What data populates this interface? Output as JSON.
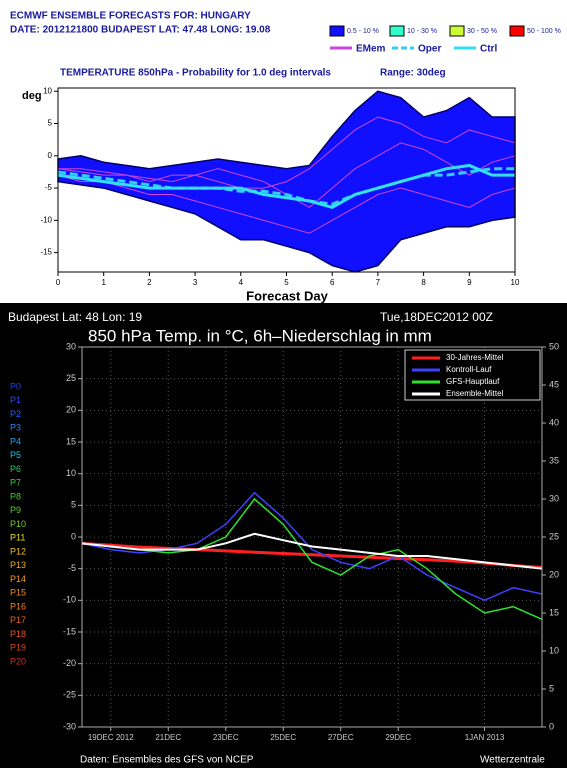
{
  "chart_data": [
    {
      "type": "line",
      "title": "ECMWF ENSEMBLE FORECASTS FOR:  HUNGARY",
      "subtitle": "DATE: 2012121800  BUDAPEST  LAT: 47.48  LONG: 19.08",
      "heading": "TEMPERATURE 850hPa - Probability for 1.0 deg intervals",
      "range_label": "Range: 30deg",
      "y_label": "deg",
      "x_label": "Forecast Day",
      "x": [
        0,
        0.5,
        1,
        1.5,
        2,
        2.5,
        3,
        3.5,
        4,
        4.5,
        5,
        5.5,
        6,
        6.5,
        7,
        7.5,
        8,
        8.5,
        9,
        9.5,
        10
      ],
      "xlim": [
        0,
        10
      ],
      "xticks": [
        0,
        1,
        2,
        3,
        4,
        5,
        6,
        7,
        8,
        9,
        10
      ],
      "ylim": [
        -18,
        10.5
      ],
      "yticks": [
        -15,
        -10,
        -5,
        0,
        5,
        10
      ],
      "probability_classes": [
        {
          "name": "0.5 - 10 %",
          "color": "#1010ff",
          "high": [
            -0.5,
            0,
            -1,
            -1.5,
            -2,
            -1.5,
            -1,
            -0.5,
            -1,
            -1.5,
            -2,
            -1.5,
            3,
            7,
            10,
            9,
            6,
            7,
            9,
            6,
            6
          ],
          "low": [
            -4,
            -4.5,
            -5,
            -6,
            -7,
            -8,
            -9,
            -11,
            -13,
            -13,
            -14,
            -15,
            -17,
            -18,
            -17,
            -13,
            -12,
            -11,
            -11,
            -10,
            -9.5
          ]
        },
        {
          "name": "10 - 30 %",
          "color": "#33ffcc"
        },
        {
          "name": "30 - 50 %",
          "color": "#ccff33"
        },
        {
          "name": "50 - 100 %",
          "color": "#ff0000"
        }
      ],
      "series": [
        {
          "name": "EMem",
          "color": "#cc44dd",
          "members": [
            [
              -2,
              -2.5,
              -3,
              -3,
              -3.5,
              -4,
              -3,
              -2,
              -3,
              -4,
              -6,
              -8,
              -5,
              -2,
              0,
              2,
              1,
              -1,
              -3,
              -1,
              0
            ],
            [
              -3,
              -4,
              -4,
              -5,
              -6,
              -6,
              -7,
              -8,
              -9,
              -10,
              -11,
              -12,
              -10,
              -8,
              -6,
              -5,
              -6,
              -7,
              -8,
              -6,
              -5
            ],
            [
              -2,
              -2,
              -2.5,
              -3,
              -4,
              -3,
              -3,
              -4,
              -5,
              -5,
              -4,
              -2,
              1,
              4,
              6,
              5,
              3,
              2,
              4,
              3,
              2
            ]
          ]
        },
        {
          "name": "Oper",
          "color": "#33ccff",
          "dashed": true,
          "values": [
            -2.5,
            -3,
            -3.5,
            -4,
            -4.5,
            -5,
            -5,
            -5,
            -5.5,
            -5.5,
            -6,
            -7,
            -7.5,
            -6,
            -5,
            -4,
            -3,
            -3,
            -2.5,
            -2,
            -2
          ]
        },
        {
          "name": "Ctrl",
          "color": "#33e0f0",
          "values": [
            -3,
            -3.5,
            -4,
            -4.5,
            -5,
            -5,
            -5,
            -5,
            -5,
            -6,
            -6.5,
            -7,
            -8,
            -6,
            -5,
            -4,
            -3,
            -2,
            -1.5,
            -3,
            -3
          ]
        }
      ]
    },
    {
      "type": "line",
      "title": "850 hPa Temp. in °C, 6h–Niederschlag in mm",
      "location": "Budapest   Lat: 48 Lon: 19",
      "run": "Tue,18DEC2012 00Z",
      "source": "Daten: Ensembles des GFS von NCEP",
      "credit": "Wetterzentrale",
      "grid": true,
      "x": [
        0,
        24,
        48,
        72,
        96,
        120,
        144,
        168,
        192,
        216,
        240,
        264,
        288,
        312,
        336,
        360,
        384
      ],
      "xlim": [
        0,
        384
      ],
      "xticks": [
        {
          "value": 24,
          "label": "19DEC 2012"
        },
        {
          "value": 72,
          "label": "21DEC"
        },
        {
          "value": 120,
          "label": "23DEC"
        },
        {
          "value": 168,
          "label": "25DEC"
        },
        {
          "value": 216,
          "label": "27DEC"
        },
        {
          "value": 264,
          "label": "29DEC"
        },
        {
          "value": 336,
          "label": "1JAN 2013"
        }
      ],
      "ylim": [
        -30,
        30
      ],
      "yticks": [
        -30,
        -25,
        -20,
        -15,
        -10,
        -5,
        0,
        5,
        10,
        15,
        20,
        25,
        30
      ],
      "y2lim": [
        0,
        50
      ],
      "y2ticks": [
        0,
        5,
        10,
        15,
        20,
        25,
        30,
        35,
        40,
        45,
        50
      ],
      "members": [
        {
          "name": "P0",
          "color": "#2040ff"
        },
        {
          "name": "P1",
          "color": "#2050ff"
        },
        {
          "name": "P2",
          "color": "#2060ff"
        },
        {
          "name": "P3",
          "color": "#2080ff"
        },
        {
          "name": "P4",
          "color": "#20a0ff"
        },
        {
          "name": "P5",
          "color": "#20c0e0"
        },
        {
          "name": "P6",
          "color": "#20d060"
        },
        {
          "name": "P7",
          "color": "#30d040"
        },
        {
          "name": "P8",
          "color": "#40d030"
        },
        {
          "name": "P9",
          "color": "#60d020"
        },
        {
          "name": "P10",
          "color": "#80d020"
        },
        {
          "name": "P11",
          "color": "#e0e020"
        },
        {
          "name": "P12",
          "color": "#f0c020"
        },
        {
          "name": "P13",
          "color": "#f0b020"
        },
        {
          "name": "P14",
          "color": "#f0a020"
        },
        {
          "name": "P15",
          "color": "#f09020"
        },
        {
          "name": "P16",
          "color": "#f08020"
        },
        {
          "name": "P17",
          "color": "#f06020"
        },
        {
          "name": "P18",
          "color": "#f05020"
        },
        {
          "name": "P19",
          "color": "#e04020"
        },
        {
          "name": "P20",
          "color": "#d03020"
        }
      ],
      "series": [
        {
          "name": "30-Jahres-Mittel",
          "color": "#ff2020",
          "width": 3,
          "values": [
            -1,
            -1.3,
            -1.6,
            -1.8,
            -2,
            -2.2,
            -2.4,
            -2.6,
            -2.8,
            -3,
            -3.2,
            -3.4,
            -3.6,
            -3.8,
            -4.1,
            -4.5,
            -4.8
          ]
        },
        {
          "name": "Kontroll-Lauf",
          "color": "#4040ff",
          "width": 1.5,
          "values": [
            -1,
            -2,
            -2.5,
            -2,
            -1,
            2,
            7,
            3,
            -2,
            -4,
            -5,
            -3,
            -6,
            -8,
            -10,
            -8,
            -9
          ]
        },
        {
          "name": "GFS-Hauptlauf",
          "color": "#30e030",
          "width": 1.5,
          "values": [
            -1,
            -1.5,
            -2,
            -2.5,
            -2,
            0,
            6,
            2,
            -4,
            -6,
            -3,
            -2,
            -5,
            -9,
            -12,
            -11,
            -13
          ]
        },
        {
          "name": "Ensemble-Mittel",
          "color": "#ffffff",
          "width": 2,
          "values": [
            -1,
            -1.5,
            -2,
            -2,
            -2,
            -1,
            0.5,
            -0.5,
            -1.5,
            -2,
            -2.5,
            -3,
            -3,
            -3.5,
            -4,
            -4.5,
            -5
          ]
        }
      ]
    }
  ]
}
